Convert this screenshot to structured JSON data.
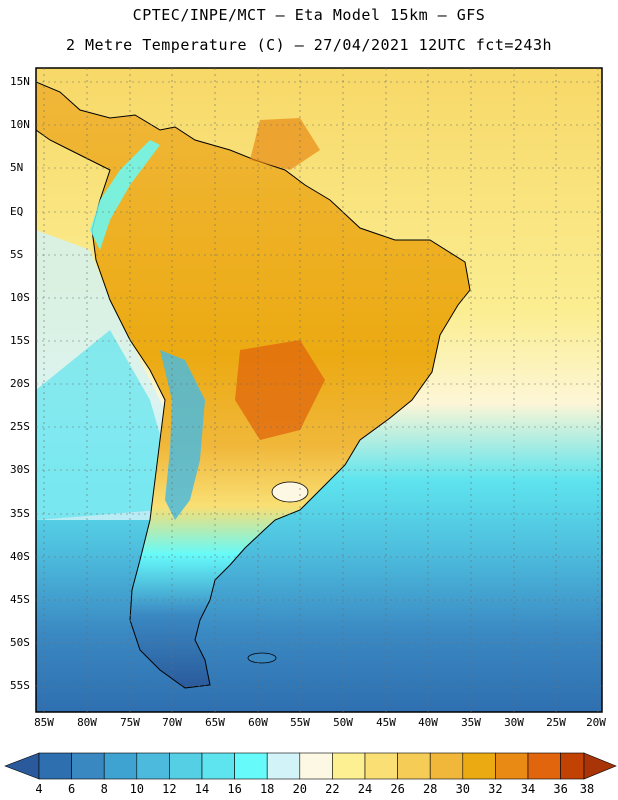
{
  "title": {
    "line1": "CPTEC/INPE/MCT –  Eta Model 15km – GFS",
    "line2": "2 Metre Temperature (C) – 27/04/2021 12UTC fct=243h"
  },
  "axes": {
    "lat_labels": [
      "15N",
      "10N",
      "5N",
      "EQ",
      "5S",
      "10S",
      "15S",
      "20S",
      "25S",
      "30S",
      "35S",
      "40S",
      "45S",
      "50S",
      "55S"
    ],
    "lon_labels": [
      "85W",
      "80W",
      "75W",
      "70W",
      "65W",
      "60W",
      "55W",
      "50W",
      "45W",
      "40W",
      "35W",
      "30W",
      "25W",
      "20W"
    ]
  },
  "colorbar": {
    "labels": [
      "4",
      "6",
      "8",
      "10",
      "12",
      "14",
      "16",
      "18",
      "20",
      "22",
      "24",
      "26",
      "28",
      "30",
      "32",
      "34",
      "36",
      "38"
    ],
    "colors": [
      "#2a5a9c",
      "#2e6fb0",
      "#3a88c2",
      "#3fa3d2",
      "#4cbadc",
      "#55cfe4",
      "#5ee4ee",
      "#66fafa",
      "#d2f3f8",
      "#fdf8e4",
      "#fcf092",
      "#f9df74",
      "#f5cc55",
      "#f0b73a",
      "#ecaa12",
      "#e88a14",
      "#e0650c",
      "#c24204",
      "#a93408"
    ]
  },
  "map_features": {
    "continent": "South America",
    "region_labels": []
  }
}
